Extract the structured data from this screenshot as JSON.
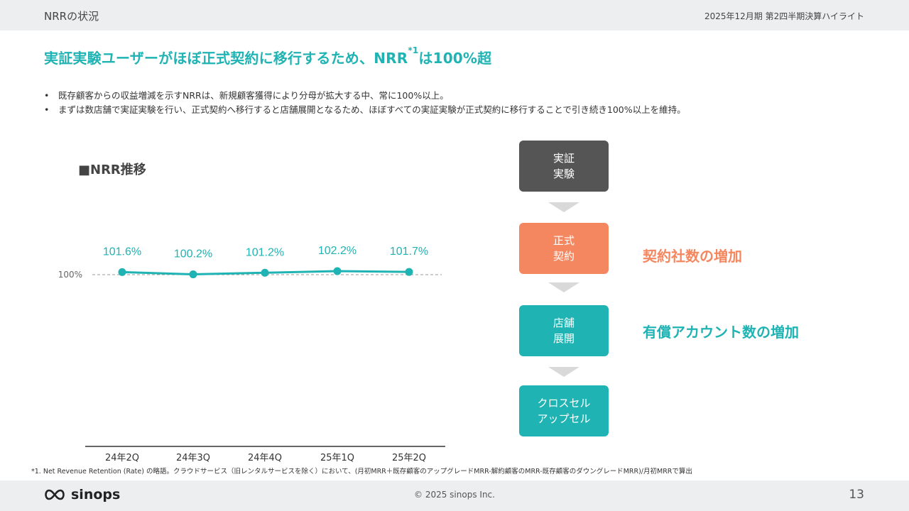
{
  "header": {
    "section_title": "NRRの状況",
    "period": "2025年12月期 第2四半期決算ハイライト"
  },
  "headline": {
    "main": "実証実験ユーザーがほぼ正式契約に移行するため、NRR",
    "sup": "*1",
    "tail": "は100%超"
  },
  "bullets": [
    "既存顧客からの収益増減を示すNRRは、新規顧客獲得により分母が拡大する中、常に100%以上。",
    "まずは数店舗で実証実験を行い、正式契約へ移行すると店舗展開となるため、ほぼすべての実証実験が正式契約に移行することで引き続き100%以上を維持。"
  ],
  "chart_title": "■NRR推移",
  "chart_data": {
    "type": "line",
    "title": "■NRR推移",
    "categories": [
      "24年2Q",
      "24年3Q",
      "24年4Q",
      "25年1Q",
      "25年2Q"
    ],
    "series": [
      {
        "values": [
          101.6,
          100.2,
          101.2,
          102.2,
          101.7
        ],
        "labels": [
          "101.6%",
          "100.2%",
          "101.2%",
          "102.2%",
          "101.7%"
        ]
      }
    ],
    "reference_line": {
      "value": 100,
      "label": "100%"
    },
    "color": "#1fb3b3"
  },
  "flow": {
    "steps": [
      {
        "label": "実証\n実験",
        "color": "#555555"
      },
      {
        "label": "正式\n契約",
        "color": "#f4875f"
      },
      {
        "label": "店舗\n展開",
        "color": "#1fb3b3"
      },
      {
        "label": "クロスセル\nアップセル",
        "color": "#1fb3b3"
      }
    ],
    "effects": [
      {
        "label": "契約社数の増加",
        "color": "#f4875f"
      },
      {
        "label": "有償アカウント数の増加",
        "color": "#1fb3b3"
      }
    ]
  },
  "footnote": "*1. Net Revenue Retention (Rate) の略語。クラウドサービス（旧レンタルサービスを除く）において、(月初MRR＋既存顧客のアップグレードMRR-解約顧客のMRR-既存顧客のダウングレードMRR)/月初MRRで算出",
  "footer": {
    "logo_text": "sinops",
    "copyright": "© 2025 sinops Inc.",
    "page_number": "13"
  }
}
